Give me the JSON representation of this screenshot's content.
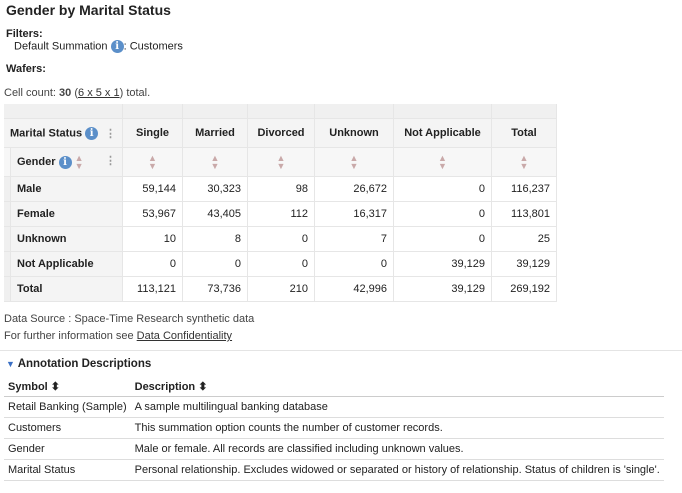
{
  "title": "Gender by Marital Status",
  "filters": {
    "label": "Filters:",
    "summation": "Default Summation",
    "separator": ": Customers"
  },
  "wafers": {
    "label": "Wafers:"
  },
  "cell_count": {
    "prefix": "Cell count: ",
    "count": "30",
    "open": " (",
    "dims": "6 x 5 x 1",
    "close": ") total."
  },
  "table": {
    "col_dim": "Marital Status",
    "row_dim": "Gender",
    "columns": [
      "Single",
      "Married",
      "Divorced",
      "Unknown",
      "Not Applicable",
      "Total"
    ],
    "rows": [
      {
        "label": "Male",
        "values": [
          "59,144",
          "30,323",
          "98",
          "26,672",
          "0",
          "116,237"
        ]
      },
      {
        "label": "Female",
        "values": [
          "53,967",
          "43,405",
          "112",
          "16,317",
          "0",
          "113,801"
        ]
      },
      {
        "label": "Unknown",
        "values": [
          "10",
          "8",
          "0",
          "7",
          "0",
          "25"
        ]
      },
      {
        "label": "Not Applicable",
        "values": [
          "0",
          "0",
          "0",
          "0",
          "39,129",
          "39,129"
        ]
      },
      {
        "label": "Total",
        "values": [
          "113,121",
          "73,736",
          "210",
          "42,996",
          "39,129",
          "269,192"
        ]
      }
    ]
  },
  "source": "Data Source : Space-Time Research synthetic data",
  "further": "For further information see ",
  "confidentiality_link": "Data Confidentiality",
  "annotations": {
    "title": "Annotation Descriptions",
    "col_symbol": "Symbol",
    "col_description": "Description",
    "rows": [
      {
        "symbol": "Retail Banking (Sample)",
        "description": "A sample multilingual banking database"
      },
      {
        "symbol": "Customers",
        "description": "This summation option counts the number of customer records."
      },
      {
        "symbol": "Gender",
        "description": "Male or female. All records are classified including unknown values."
      },
      {
        "symbol": "Marital Status",
        "description": "Personal relationship. Excludes widowed or separated or history of relationship. Status of children is 'single'."
      }
    ]
  }
}
